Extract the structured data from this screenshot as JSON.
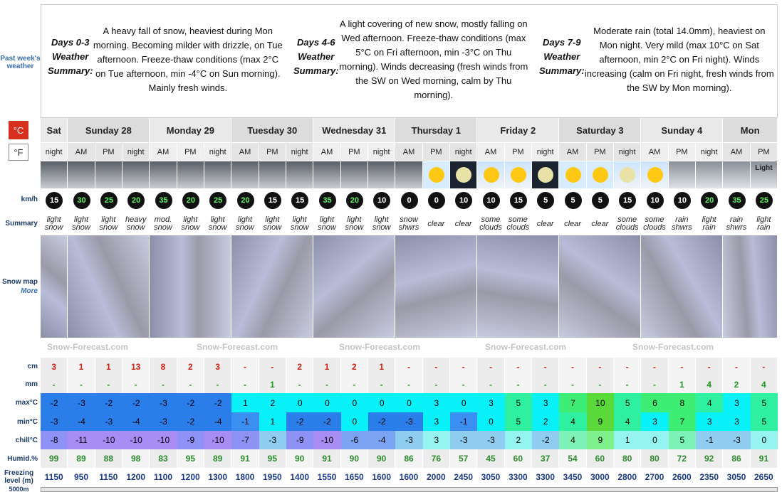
{
  "left_labels": {
    "past": "Past week's weather",
    "unit_c": "°C",
    "unit_f": "°F",
    "wind": "km/h",
    "summary": "Summary",
    "snow_map": "Snow map",
    "more": "More",
    "cm": "cm",
    "mm": "mm",
    "max": "max°C",
    "min": "min°C",
    "chill": "chill°C",
    "humid": "Humid.%",
    "freezing": "Freezing level (m)",
    "level": "5000m"
  },
  "summaries": [
    {
      "title": "Days 0-3 Weather Summary:",
      "text": "A heavy fall of snow, heaviest during Mon morning. Becoming milder with drizzle, on Tue afternoon. Freeze-thaw conditions (max 2°C on Tue afternoon, min -4°C on Sun morning). Mainly fresh winds."
    },
    {
      "title": "Days 4-6 Weather Summary:",
      "text": "A light covering of new snow, mostly falling on Wed afternoon. Freeze-thaw conditions (max 5°C on Fri afternoon, min -3°C on Thu morning). Winds decreasing (fresh winds from the SW on Wed morning, calm by Thu morning)."
    },
    {
      "title": "Days 7-9 Weather Summary:",
      "text": "Moderate rain (total 14.0mm), heaviest on Mon night. Very mild (max 10°C on Sat afternoon, min 2°C on Fri night). Winds increasing (calm on Fri night, fresh winds from the SW by Mon morning)."
    }
  ],
  "days": [
    {
      "name": "Sat",
      "periods": [
        "night"
      ]
    },
    {
      "name": "Sunday 28",
      "periods": [
        "AM",
        "PM",
        "night"
      ]
    },
    {
      "name": "Monday 29",
      "periods": [
        "AM",
        "PM",
        "night"
      ]
    },
    {
      "name": "Tuesday 30",
      "periods": [
        "AM",
        "PM",
        "night"
      ]
    },
    {
      "name": "Wednesday 31",
      "periods": [
        "AM",
        "PM",
        "night"
      ]
    },
    {
      "name": "Thursday 1",
      "periods": [
        "AM",
        "PM",
        "night"
      ]
    },
    {
      "name": "Friday 2",
      "periods": [
        "AM",
        "PM",
        "night"
      ]
    },
    {
      "name": "Saturday 3",
      "periods": [
        "AM",
        "PM",
        "night"
      ]
    },
    {
      "name": "Sunday 4",
      "periods": [
        "AM",
        "PM",
        "night"
      ]
    },
    {
      "name": "Mon",
      "periods": [
        "AM",
        "PM"
      ]
    }
  ],
  "icon_label": "Light",
  "watermark": "Snow-Forecast.com",
  "wind": [
    15,
    30,
    25,
    20,
    35,
    20,
    25,
    20,
    15,
    15,
    35,
    20,
    10,
    0,
    0,
    10,
    10,
    15,
    5,
    5,
    5,
    15,
    10,
    10,
    20,
    35,
    25
  ],
  "summary": [
    "light snow",
    "light snow",
    "light snow",
    "heavy snow",
    "mod. snow",
    "light snow",
    "light snow",
    "light snow",
    "light snow",
    "light snow",
    "light snow",
    "light snow",
    "light snow",
    "snow shwrs",
    "clear",
    "clear",
    "some clouds",
    "some clouds",
    "clear",
    "clear",
    "clear",
    "some clouds",
    "some clouds",
    "rain shwrs",
    "light rain",
    "rain shwrs",
    "light rain"
  ],
  "snow_cm": [
    "3",
    "1",
    "1",
    "13",
    "8",
    "2",
    "3",
    "-",
    "-",
    "2",
    "1",
    "2",
    "1",
    "-",
    "-",
    "-",
    "-",
    "-",
    "-",
    "-",
    "-",
    "-",
    "-",
    "-",
    "-",
    "-",
    "-"
  ],
  "rain_mm": [
    "-",
    "-",
    "-",
    "-",
    "-",
    "-",
    "-",
    "-",
    "1",
    "-",
    "-",
    "-",
    "-",
    "-",
    "-",
    "-",
    "-",
    "-",
    "-",
    "-",
    "-",
    "-",
    "-",
    "1",
    "4",
    "2",
    "4"
  ],
  "max": [
    -2,
    -3,
    -2,
    -2,
    -3,
    -2,
    -2,
    1,
    2,
    0,
    0,
    0,
    0,
    0,
    3,
    0,
    3,
    5,
    3,
    7,
    10,
    5,
    6,
    8,
    4,
    3,
    5
  ],
  "min": [
    -3,
    -4,
    -3,
    -4,
    -3,
    -2,
    -4,
    -1,
    1,
    -2,
    -2,
    0,
    -2,
    -3,
    3,
    -1,
    0,
    5,
    2,
    4,
    9,
    4,
    3,
    7,
    3,
    3,
    5
  ],
  "chill": [
    -8,
    -11,
    -10,
    -10,
    -10,
    -9,
    -10,
    -7,
    -3,
    -9,
    -10,
    -6,
    -4,
    -3,
    3,
    -3,
    -3,
    2,
    -2,
    4,
    9,
    1,
    0,
    5,
    -1,
    -3,
    0
  ],
  "humid": [
    99,
    89,
    88,
    98,
    83,
    95,
    89,
    91,
    95,
    90,
    91,
    90,
    90,
    86,
    76,
    57,
    45,
    60,
    37,
    54,
    60,
    80,
    80,
    72,
    92,
    86,
    91
  ],
  "freezing": [
    1150,
    950,
    1150,
    1200,
    1100,
    1200,
    1300,
    1800,
    1950,
    1400,
    1550,
    1650,
    1600,
    1600,
    2000,
    2450,
    3050,
    3300,
    3300,
    3450,
    3000,
    2800,
    2700,
    2600,
    2350,
    3050,
    2650
  ]
}
